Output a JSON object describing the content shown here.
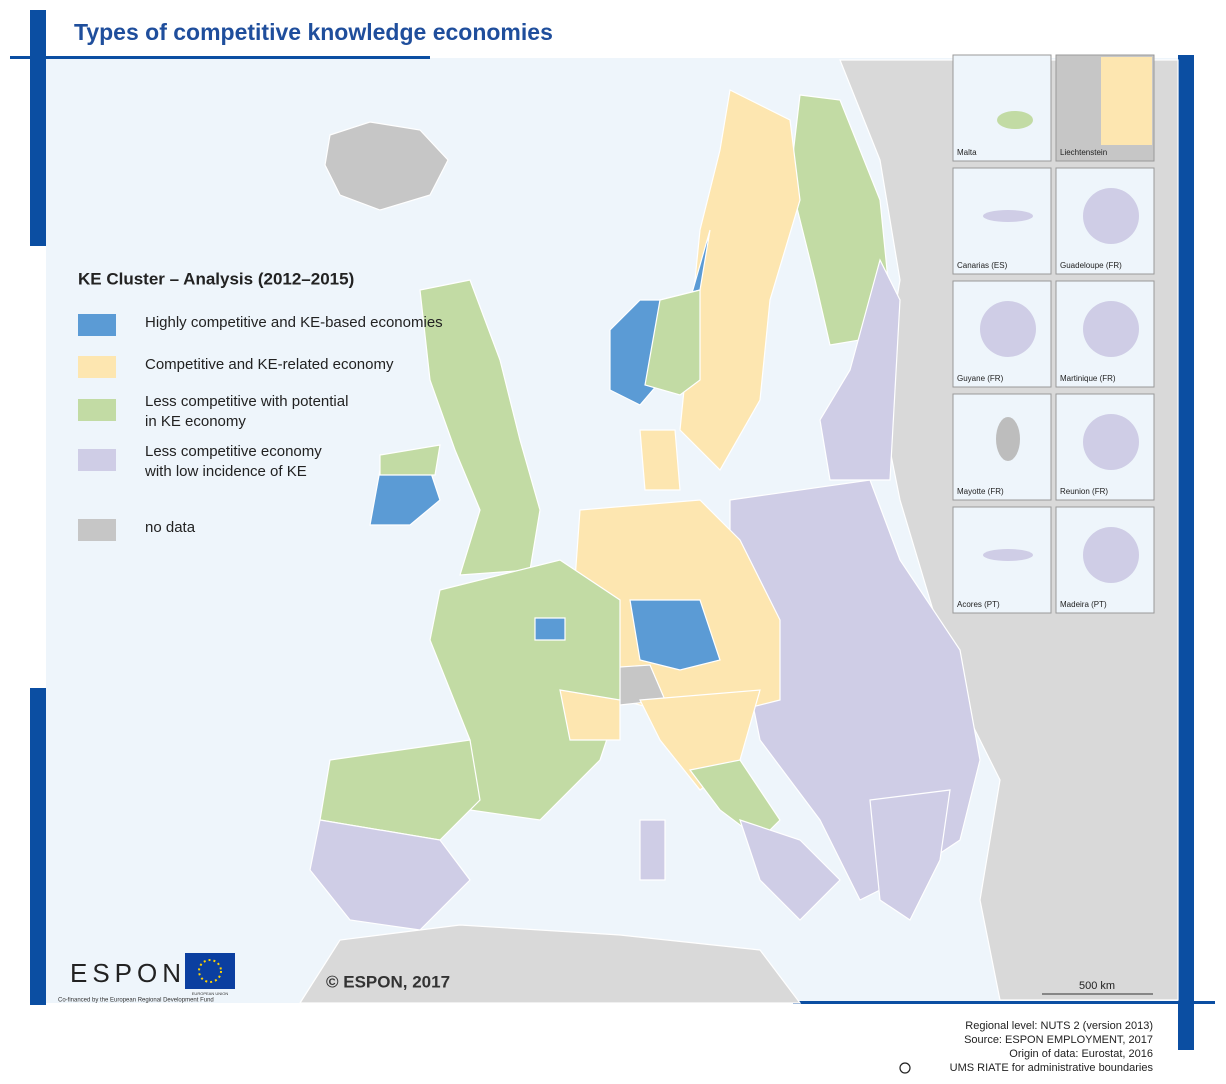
{
  "header": {
    "title": "Types of competitive knowledge economies"
  },
  "legend": {
    "title": "KE Cluster – Analysis (2012–2015)",
    "items": [
      {
        "lines": [
          "Highly competitive and KE-based economies"
        ],
        "color": "#5b9bd5"
      },
      {
        "lines": [
          "Competitive and KE-related economy"
        ],
        "color": "#fde6b0"
      },
      {
        "lines": [
          "Less competitive with potential",
          "in KE economy"
        ],
        "color": "#c2dba4"
      },
      {
        "lines": [
          "Less competitive economy",
          "with low incidence of KE"
        ],
        "color": "#cfcde6"
      },
      {
        "lines": [
          "no data"
        ],
        "color": "#c6c6c6"
      }
    ]
  },
  "insets": [
    "Malta",
    "Liechtenstein",
    "Canarias (ES)",
    "Guadeloupe (FR)",
    "Guyane (FR)",
    "Martinique (FR)",
    "Mayotte (FR)",
    "Reunion (FR)",
    "Acores (PT)",
    "Madeira (PT)"
  ],
  "copyright": "© ESPON, 2017",
  "scale": "500 km",
  "logos": {
    "espon": "ESPON",
    "cofinanced": "Co-financed by the European Regional Development Fund",
    "eu": "EUROPEAN UNION"
  },
  "footer": [
    "Regional level: NUTS 2 (version 2013)",
    "Source: ESPON EMPLOYMENT, 2017",
    "Origin of data: Eurostat, 2016",
    "UMS RIATE for administrative boundaries"
  ]
}
